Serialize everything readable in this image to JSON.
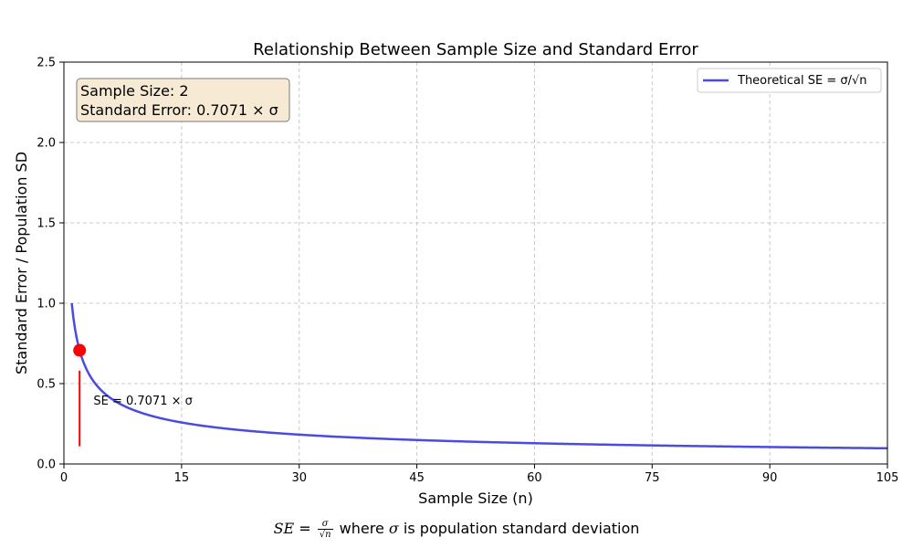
{
  "chart_data": {
    "type": "line",
    "title": "Relationship Between Sample Size and Standard Error",
    "xlabel": "Sample Size (n)",
    "ylabel": "Standard Error / Population SD",
    "xlim": [
      0,
      105
    ],
    "ylim": [
      0,
      2.5
    ],
    "xticks": [
      0,
      15,
      30,
      45,
      60,
      75,
      90,
      105
    ],
    "yticks": [
      0.0,
      0.5,
      1.0,
      1.5,
      2.0,
      2.5
    ],
    "xtick_labels": [
      "0",
      "15",
      "30",
      "45",
      "60",
      "75",
      "90",
      "105"
    ],
    "ytick_labels": [
      "0.0",
      "0.5",
      "1.0",
      "1.5",
      "2.0",
      "2.5"
    ],
    "grid": true,
    "legend_position": "top-right",
    "series": [
      {
        "name": "Theoretical SE = σ/√n",
        "color": "#4b4be0",
        "function": "1/sqrt(n)",
        "x_range": [
          1,
          105
        ]
      }
    ],
    "highlight_point": {
      "x": 2,
      "y": 0.7071,
      "color": "#ff0000"
    },
    "highlight_line": {
      "x": 2,
      "y_from": 0.11,
      "y_to": 0.58,
      "color": "#ff0000"
    },
    "annotation": {
      "text": "SE = 0.7071 × σ",
      "x": 4,
      "y": 0.37
    },
    "info_box": {
      "line1": "Sample Size: 2",
      "line2": "Standard Error: 0.7071 × σ",
      "background": "#f6ead4"
    }
  },
  "formula": {
    "lhs": "SE",
    "eq": " = ",
    "numerator": "σ",
    "denominator": "√n",
    "rest_prefix": " where ",
    "sigma": "σ",
    "rest_suffix": " is population standard deviation"
  }
}
